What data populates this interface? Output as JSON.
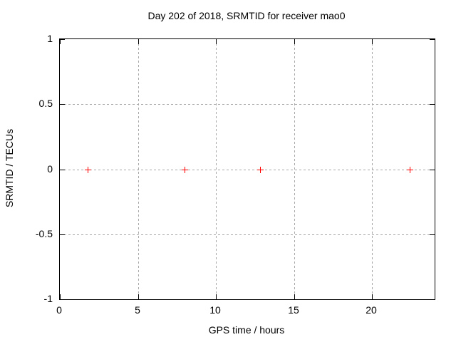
{
  "chart_data": {
    "type": "scatter",
    "title": "Day 202 of 2018, SRMTID for receiver mao0",
    "xlabel": "GPS time / hours",
    "ylabel": "SRMTID / TECUs",
    "xlim": [
      0,
      24
    ],
    "ylim": [
      -1,
      1
    ],
    "xticks": [
      0,
      5,
      10,
      15,
      20
    ],
    "yticks": [
      -1,
      -0.5,
      0,
      0.5,
      1
    ],
    "grid": true,
    "legend": "none",
    "marker": "plus",
    "marker_color": "#ff0000",
    "grid_color": "#a8a8a8",
    "border_color": "#000000",
    "background_color": "#ffffff",
    "series": [
      {
        "name": "SRMTID",
        "points": [
          {
            "x": 1.8,
            "y": 0
          },
          {
            "x": 8.0,
            "y": 0
          },
          {
            "x": 12.8,
            "y": 0
          },
          {
            "x": 22.4,
            "y": 0
          }
        ]
      }
    ]
  }
}
